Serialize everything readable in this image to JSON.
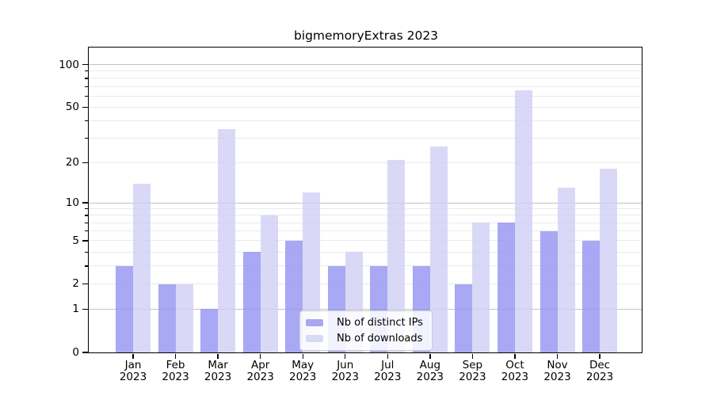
{
  "chart_data": {
    "type": "bar",
    "title": "bigmemoryExtras 2023",
    "y_scale": "log1p",
    "ylim": [
      0,
      130
    ],
    "grid": "on",
    "legend_position": "bottom-center-inside",
    "categories": [
      {
        "month": "Jan",
        "year": "2023"
      },
      {
        "month": "Feb",
        "year": "2023"
      },
      {
        "month": "Mar",
        "year": "2023"
      },
      {
        "month": "Apr",
        "year": "2023"
      },
      {
        "month": "May",
        "year": "2023"
      },
      {
        "month": "Jun",
        "year": "2023"
      },
      {
        "month": "Jul",
        "year": "2023"
      },
      {
        "month": "Aug",
        "year": "2023"
      },
      {
        "month": "Sep",
        "year": "2023"
      },
      {
        "month": "Oct",
        "year": "2023"
      },
      {
        "month": "Nov",
        "year": "2023"
      },
      {
        "month": "Dec",
        "year": "2023"
      }
    ],
    "series": [
      {
        "key": "distinct-ips",
        "name": "Nb of distinct IPs",
        "color": "rgba(146,146,241,0.8)",
        "values": [
          3,
          2,
          1,
          4,
          5,
          3,
          3,
          3,
          2,
          7,
          6,
          5
        ]
      },
      {
        "key": "downloads",
        "name": "Nb of downloads",
        "color": "rgba(208,208,245,0.8)",
        "values": [
          14,
          2,
          35,
          8,
          12,
          4,
          21,
          26,
          7,
          66,
          13,
          18
        ]
      }
    ],
    "y_axis": {
      "major_ticks": [
        0,
        1,
        2,
        5,
        10,
        20,
        50,
        100
      ],
      "minor_ticks": [
        3,
        4,
        6,
        7,
        8,
        9,
        30,
        40,
        60,
        70,
        80,
        90
      ]
    },
    "gridlines": {
      "major_values": [
        1,
        10,
        100
      ],
      "minor_values": [
        2,
        3,
        4,
        5,
        6,
        7,
        8,
        9,
        20,
        30,
        40,
        50,
        60,
        70,
        80,
        90
      ]
    },
    "colors": {
      "major_grid": "#c3c3c3",
      "minor_grid": "#eaeaea",
      "axis": "#000000",
      "background": "#ffffff",
      "bar_distinct_ips_rendered": "#a8a8f2",
      "bar_downloads_rendered": "#d9d9f7"
    }
  }
}
